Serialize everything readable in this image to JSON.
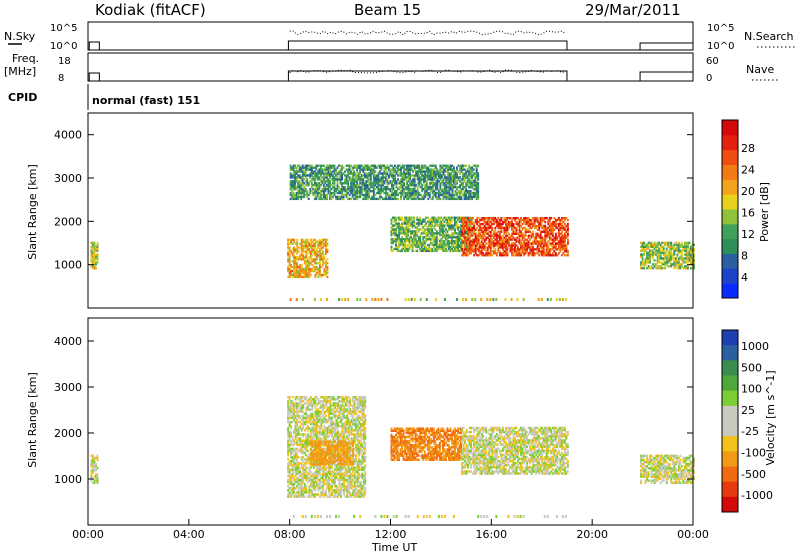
{
  "header": {
    "station": "Kodiak (fitACF)",
    "beam": "Beam 15",
    "date": "29/Mar/2011"
  },
  "panels": {
    "nsky": {
      "label": "N.Sky",
      "ticks": [
        "10^5",
        "10^0"
      ],
      "right_ticks": [
        "10^5",
        "10^0"
      ],
      "right_label": "N.Search"
    },
    "freq": {
      "label_top": "Freq.",
      "label_bottom": "[MHz]",
      "ticks": [
        "18",
        "8"
      ],
      "right_ticks": [
        "60",
        "0"
      ],
      "right_label": "Nave"
    },
    "cpid": {
      "label": "CPID",
      "text": "normal (fast) 151"
    }
  },
  "colorbars": {
    "power": {
      "label": "Power [dB]",
      "ticks": [
        "28",
        "24",
        "20",
        "16",
        "12",
        "8",
        "4"
      ],
      "colors": [
        "#0a2bff",
        "#1c44c8",
        "#2a5fa0",
        "#2f8f5a",
        "#40a15a",
        "#8fc23a",
        "#e6d21a",
        "#f2a31a",
        "#f27a15",
        "#ef4d12",
        "#e6200f",
        "#d40a0a"
      ]
    },
    "velocity": {
      "label": "Velocity [m s^-1]",
      "ticks": [
        "1000",
        "500",
        "100",
        "25",
        "-25",
        "-100",
        "-500",
        "-1000"
      ],
      "colors": [
        "#1f3fb0",
        "#2a5fa0",
        "#3a8d4f",
        "#4fa83c",
        "#7ccf33",
        "#c9c9c0",
        "#c9c9c0",
        "#f2c21a",
        "#f29a15",
        "#f06a12",
        "#e83a10",
        "#d40a0a"
      ]
    }
  },
  "chart_data": [
    {
      "type": "heatmap",
      "title": "",
      "ylabel": "Slant Range [km]",
      "xlabel": "",
      "ylim": [
        0,
        4500
      ],
      "yticks": [
        "1000",
        "2000",
        "3000",
        "4000"
      ],
      "xlim": [
        0,
        24
      ],
      "colorbar": "Power [dB]",
      "regions": [
        {
          "t0": 0.1,
          "t1": 0.4,
          "r0": 900,
          "r1": 1500,
          "value": 16
        },
        {
          "t0": 7.9,
          "t1": 9.5,
          "r0": 700,
          "r1": 1600,
          "value": 18
        },
        {
          "t0": 8.0,
          "t1": 15.5,
          "r0": 2500,
          "r1": 3300,
          "value": 10
        },
        {
          "t0": 12.0,
          "t1": 15.2,
          "r0": 1300,
          "r1": 2100,
          "value": 12
        },
        {
          "t0": 14.8,
          "t1": 19.0,
          "r0": 1200,
          "r1": 2100,
          "value": 24
        },
        {
          "t0": 21.9,
          "t1": 24.0,
          "r0": 900,
          "r1": 1500,
          "value": 14
        }
      ]
    },
    {
      "type": "heatmap",
      "title": "",
      "ylabel": "Slant Range [km]",
      "xlabel": "Time UT",
      "ylim": [
        0,
        4500
      ],
      "yticks": [
        "1000",
        "2000",
        "3000",
        "4000"
      ],
      "xlim": [
        0,
        24
      ],
      "xticks": [
        "00:00",
        "04:00",
        "08:00",
        "12:00",
        "16:00",
        "20:00",
        "00:00"
      ],
      "colorbar": "Velocity [m s^-1]",
      "regions": [
        {
          "t0": 0.1,
          "t1": 0.4,
          "r0": 900,
          "r1": 1500,
          "value": 0
        },
        {
          "t0": 7.9,
          "t1": 11.0,
          "r0": 600,
          "r1": 2800,
          "value": 0
        },
        {
          "t0": 8.8,
          "t1": 10.5,
          "r0": 1300,
          "r1": 1800,
          "value": -150
        },
        {
          "t0": 12.0,
          "t1": 14.8,
          "r0": 1400,
          "r1": 2100,
          "value": -300
        },
        {
          "t0": 14.8,
          "t1": 19.0,
          "r0": 1100,
          "r1": 2100,
          "value": 0
        },
        {
          "t0": 21.9,
          "t1": 24.0,
          "r0": 900,
          "r1": 1500,
          "value": 0
        }
      ]
    }
  ]
}
